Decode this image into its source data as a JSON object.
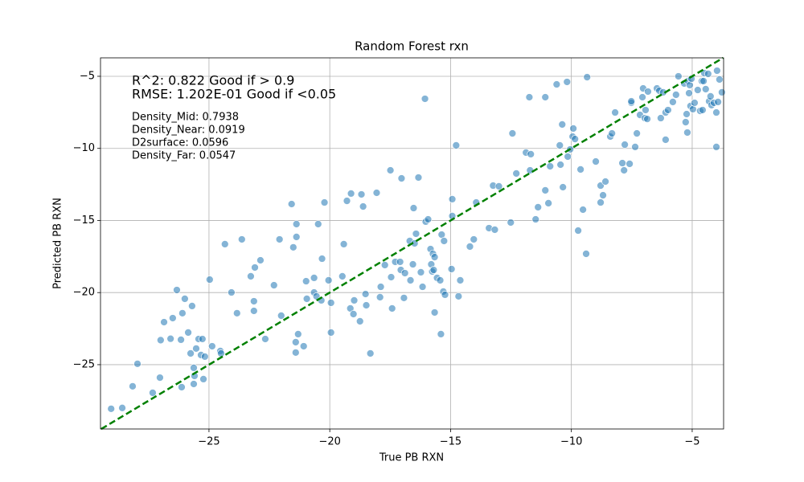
{
  "chart_data": {
    "type": "scatter",
    "title": "Random Forest rxn",
    "x_label": "True PB RXN",
    "y_label": "Predicted PB RXN",
    "annotations": [
      "R^2: 0.822 Good if > 0.9",
      "RMSE: 1.202E-01 Good if <0.05",
      "Density_Mid: 0.7938",
      "Density_Near: 0.0919",
      "D2surface: 0.0596",
      "Density_Far: 0.0547"
    ],
    "xlim": [
      -29.49,
      -3.7
    ],
    "ylim": [
      -29.46,
      -3.72
    ],
    "xticks": [
      {
        "value": -25,
        "label": "−25"
      },
      {
        "value": -20,
        "label": "−20"
      },
      {
        "value": -15,
        "label": "−15"
      },
      {
        "value": -10,
        "label": "−10"
      },
      {
        "value": -5,
        "label": "−5"
      }
    ],
    "yticks": [
      {
        "value": -25,
        "label": "−25"
      },
      {
        "value": -20,
        "label": "−20"
      },
      {
        "value": -15,
        "label": "−15"
      },
      {
        "value": -10,
        "label": "−10"
      },
      {
        "value": -5,
        "label": "−5"
      }
    ],
    "grid": true,
    "color": "#1f77b4",
    "diagonal": true,
    "diagonal_color": "#008000",
    "x": [
      -29.05,
      -28.59,
      -28.16,
      -27.96,
      -27.33,
      -27.03,
      -27.0,
      -26.86,
      -26.59,
      -26.5,
      -26.33,
      -26.16,
      -26.13,
      -26.1,
      -26.0,
      -25.86,
      -25.76,
      -25.7,
      -25.63,
      -25.63,
      -25.6,
      -25.53,
      -25.43,
      -25.33,
      -25.27,
      -25.23,
      -25.17,
      -24.97,
      -24.87,
      -24.53,
      -24.5,
      -24.34,
      -24.07,
      -23.84,
      -23.64,
      -23.27,
      -23.14,
      -23.14,
      -23.1,
      -22.87,
      -22.67,
      -22.31,
      -22.08,
      -22.01,
      -21.58,
      -21.51,
      -21.41,
      -21.41,
      -21.38,
      -21.38,
      -21.31,
      -21.08,
      -20.98,
      -20.95,
      -20.65,
      -20.65,
      -20.55,
      -20.48,
      -20.35,
      -20.32,
      -20.22,
      -20.05,
      -19.95,
      -19.95,
      -19.48,
      -19.42,
      -19.29,
      -19.15,
      -19.12,
      -19.02,
      -18.99,
      -18.75,
      -18.69,
      -18.62,
      -18.52,
      -18.49,
      -18.32,
      -18.06,
      -17.92,
      -17.89,
      -17.72,
      -17.49,
      -17.46,
      -17.42,
      -17.29,
      -17.09,
      -17.06,
      -17.03,
      -16.93,
      -16.89,
      -16.69,
      -16.66,
      -16.56,
      -16.53,
      -16.49,
      -16.43,
      -16.33,
      -16.23,
      -16.16,
      -16.06,
      -16.03,
      -15.93,
      -15.83,
      -15.8,
      -15.76,
      -15.73,
      -15.7,
      -15.66,
      -15.66,
      -15.56,
      -15.43,
      -15.4,
      -15.37,
      -15.3,
      -15.27,
      -15.23,
      -14.96,
      -14.93,
      -14.93,
      -14.77,
      -14.67,
      -14.6,
      -14.2,
      -14.04,
      -13.94,
      -13.41,
      -13.24,
      -13.17,
      -13.0,
      -12.51,
      -12.44,
      -12.28,
      -11.88,
      -11.74,
      -11.71,
      -11.68,
      -11.48,
      -11.38,
      -11.08,
      -11.08,
      -10.95,
      -10.88,
      -10.61,
      -10.48,
      -10.45,
      -10.38,
      -10.35,
      -10.18,
      -10.15,
      -10.05,
      -9.95,
      -9.92,
      -9.85,
      -9.72,
      -9.62,
      -9.52,
      -9.39,
      -9.35,
      -8.99,
      -8.79,
      -8.79,
      -8.69,
      -8.59,
      -8.39,
      -8.32,
      -8.19,
      -7.89,
      -7.82,
      -7.79,
      -7.59,
      -7.52,
      -7.52,
      -7.36,
      -7.29,
      -7.16,
      -7.06,
      -7.03,
      -6.96,
      -6.93,
      -6.86,
      -6.83,
      -6.46,
      -6.36,
      -6.3,
      -6.2,
      -6.1,
      -6.1,
      -6.0,
      -5.8,
      -5.67,
      -5.57,
      -5.33,
      -5.27,
      -5.23,
      -5.2,
      -5.17,
      -5.13,
      -5.1,
      -5.07,
      -5.03,
      -4.97,
      -4.9,
      -4.77,
      -4.67,
      -4.6,
      -4.57,
      -4.53,
      -4.5,
      -4.44,
      -4.34,
      -4.3,
      -4.24,
      -4.2,
      -4.1,
      -4.0,
      -4.0,
      -3.97,
      -3.93,
      -3.87,
      -3.77
    ],
    "values": [
      -28.06,
      -28.0,
      -26.5,
      -24.94,
      -26.95,
      -25.9,
      -23.3,
      -22.05,
      -23.2,
      -21.77,
      -19.82,
      -23.27,
      -26.56,
      -21.43,
      -20.43,
      -22.77,
      -24.22,
      -20.93,
      -25.22,
      -26.34,
      -25.78,
      -23.88,
      -23.22,
      -24.33,
      -23.22,
      -26.0,
      -24.44,
      -19.1,
      -23.72,
      -24.05,
      -24.22,
      -16.64,
      -19.99,
      -21.43,
      -16.31,
      -18.87,
      -20.6,
      -21.27,
      -18.26,
      -17.76,
      -23.22,
      -19.49,
      -16.31,
      -21.6,
      -13.86,
      -16.86,
      -23.44,
      -24.16,
      -16.14,
      -15.25,
      -22.88,
      -23.72,
      -19.21,
      -20.43,
      -18.98,
      -19.99,
      -20.26,
      -15.25,
      -20.54,
      -17.65,
      -13.75,
      -19.15,
      -20.71,
      -22.77,
      -18.87,
      -16.64,
      -13.64,
      -21.1,
      -13.13,
      -21.49,
      -20.54,
      -21.99,
      -13.19,
      -14.03,
      -20.1,
      -20.88,
      -24.22,
      -13.08,
      -20.32,
      -19.6,
      -18.09,
      -11.52,
      -18.93,
      -21.1,
      -17.87,
      -17.87,
      -18.43,
      -12.08,
      -20.37,
      -18.65,
      -16.42,
      -19.15,
      -18.04,
      -14.14,
      -16.59,
      -15.92,
      -12.02,
      -18.59,
      -19.6,
      -6.56,
      -15.08,
      -14.92,
      -16.98,
      -18.04,
      -18.54,
      -17.31,
      -18.43,
      -17.54,
      -21.38,
      -18.98,
      -19.15,
      -22.88,
      -15.98,
      -19.93,
      -16.42,
      -20.15,
      -18.37,
      -13.52,
      -14.69,
      -9.79,
      -20.26,
      -19.15,
      -16.81,
      -16.31,
      -13.75,
      -15.53,
      -12.58,
      -15.64,
      -12.63,
      -15.14,
      -8.96,
      -11.74,
      -10.29,
      -6.45,
      -11.52,
      -10.4,
      -14.92,
      -14.08,
      -6.45,
      -12.91,
      -13.8,
      -11.24,
      -5.56,
      -9.79,
      -11.13,
      -8.34,
      -12.69,
      -5.39,
      -10.57,
      -10.07,
      -9.18,
      -8.62,
      -9.35,
      -15.7,
      -11.46,
      -14.25,
      -17.31,
      -5.06,
      -10.91,
      -12.58,
      -13.75,
      -13.25,
      -12.3,
      -9.18,
      -8.96,
      -7.51,
      -11.02,
      -11.52,
      -9.74,
      -11.07,
      -6.84,
      -6.73,
      -9.9,
      -8.96,
      -7.68,
      -6.45,
      -5.84,
      -7.9,
      -7.34,
      -7.96,
      -6.06,
      -5.84,
      -6.0,
      -7.9,
      -6.11,
      -7.51,
      -9.4,
      -7.34,
      -6.78,
      -6.28,
      -5.0,
      -5.5,
      -8.18,
      -7.62,
      -8.9,
      -5.33,
      -6.17,
      -5.61,
      -7.06,
      -5.17,
      -7.28,
      -6.84,
      -5.95,
      -7.4,
      -5.33,
      -7.34,
      -5.33,
      -4.78,
      -5.89,
      -4.83,
      -6.73,
      -6.39,
      -7.0,
      -6.84,
      -7.51,
      -9.9,
      -4.61,
      -6.78,
      -5.22,
      -6.11
    ]
  }
}
